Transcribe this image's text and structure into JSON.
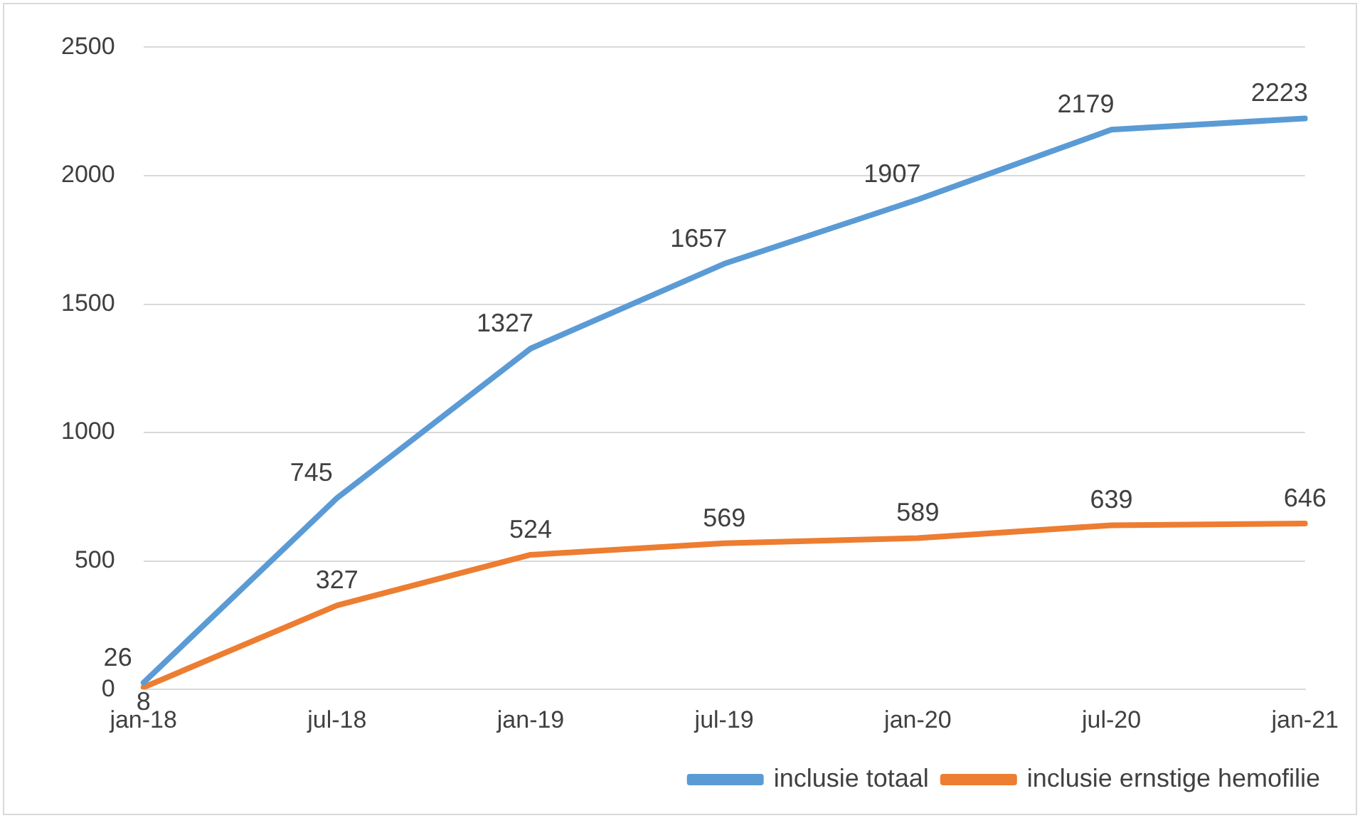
{
  "chart_data": {
    "type": "line",
    "categories": [
      "jan-18",
      "jul-18",
      "jan-19",
      "jul-19",
      "jan-20",
      "jul-20",
      "jan-21"
    ],
    "series": [
      {
        "name": "inclusie totaal",
        "color": "#5b9bd5",
        "values": [
          26,
          745,
          1327,
          1657,
          1907,
          2179,
          2223
        ]
      },
      {
        "name": "inclusie ernstige hemofilie",
        "color": "#ed7d31",
        "values": [
          8,
          327,
          524,
          569,
          589,
          639,
          646
        ]
      }
    ],
    "ylim": [
      0,
      2500
    ],
    "yticks": [
      0,
      500,
      1000,
      1500,
      2000,
      2500
    ],
    "grid": "y",
    "legend": "bottom",
    "marker": "none",
    "line_style": "solid",
    "data_labels": true
  }
}
